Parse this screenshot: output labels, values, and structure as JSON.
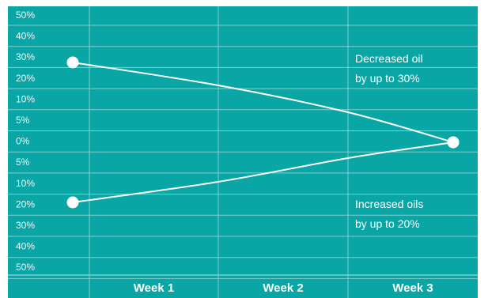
{
  "colors": {
    "background": "#0aa5a5",
    "grid": "#7fd0d0",
    "text": "#ffffff",
    "line": "#ffffff"
  },
  "chart_data": {
    "type": "line",
    "categories": [
      "",
      "Week 1",
      "Week 2",
      "Week 3"
    ],
    "y_tick_labels": [
      "50%",
      "40%",
      "30%",
      "20%",
      "10%",
      "5%",
      "0%",
      "5%",
      "10%",
      "20%",
      "30%",
      "40%",
      "50%"
    ],
    "series": [
      {
        "name": "",
        "points": [
          {
            "week": 0.15,
            "value": 28
          },
          {
            "week": 1.0,
            "value": 17
          },
          {
            "week": 2.0,
            "value": 7
          },
          {
            "week": 2.85,
            "value": 0
          }
        ]
      },
      {
        "name": "",
        "points": [
          {
            "week": 0.15,
            "value": -20
          },
          {
            "week": 1.0,
            "value": -14
          },
          {
            "week": 2.0,
            "value": -6
          },
          {
            "week": 2.85,
            "value": 0
          }
        ]
      }
    ],
    "annotations": [
      {
        "lines": [
          "Decreased oil",
          "by up to 30%"
        ]
      },
      {
        "lines": [
          "Increased oils",
          "by up to 20%"
        ]
      }
    ],
    "grid": true
  }
}
